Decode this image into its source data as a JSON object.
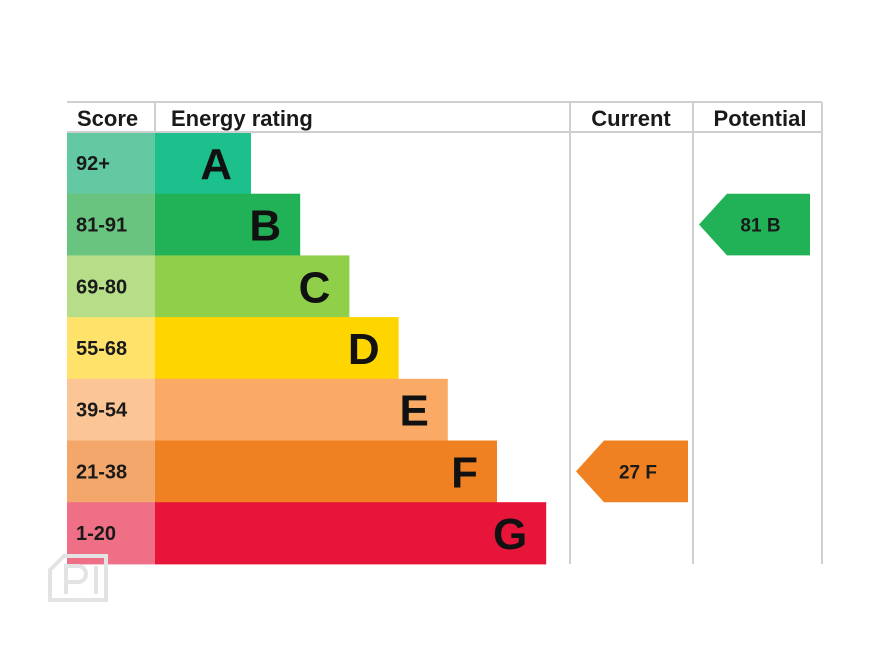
{
  "header": {
    "score": "Score",
    "rating": "Energy rating",
    "current": "Current",
    "potential": "Potential"
  },
  "chart_data": {
    "type": "bar",
    "bands": [
      {
        "letter": "A",
        "range": "92+",
        "color": "#1cc08c",
        "score_bg": "#63c9a2"
      },
      {
        "letter": "B",
        "range": "81-91",
        "color": "#21b156",
        "score_bg": "#68c47e"
      },
      {
        "letter": "C",
        "range": "69-80",
        "color": "#8fcf4a",
        "score_bg": "#b6de88"
      },
      {
        "letter": "D",
        "range": "55-68",
        "color": "#ffd500",
        "score_bg": "#ffe26a"
      },
      {
        "letter": "E",
        "range": "39-54",
        "color": "#fbaa65",
        "score_bg": "#fcc596"
      },
      {
        "letter": "F",
        "range": "21-38",
        "color": "#ef8122",
        "score_bg": "#f4a76a"
      },
      {
        "letter": "G",
        "range": "1-20",
        "color": "#e8153b",
        "score_bg": "#ef6f86"
      }
    ],
    "current": {
      "value": 27,
      "band": "F",
      "label": "27  F",
      "color": "#ef8122"
    },
    "potential": {
      "value": 81,
      "band": "B",
      "label": "81  B",
      "color": "#21b156"
    }
  }
}
